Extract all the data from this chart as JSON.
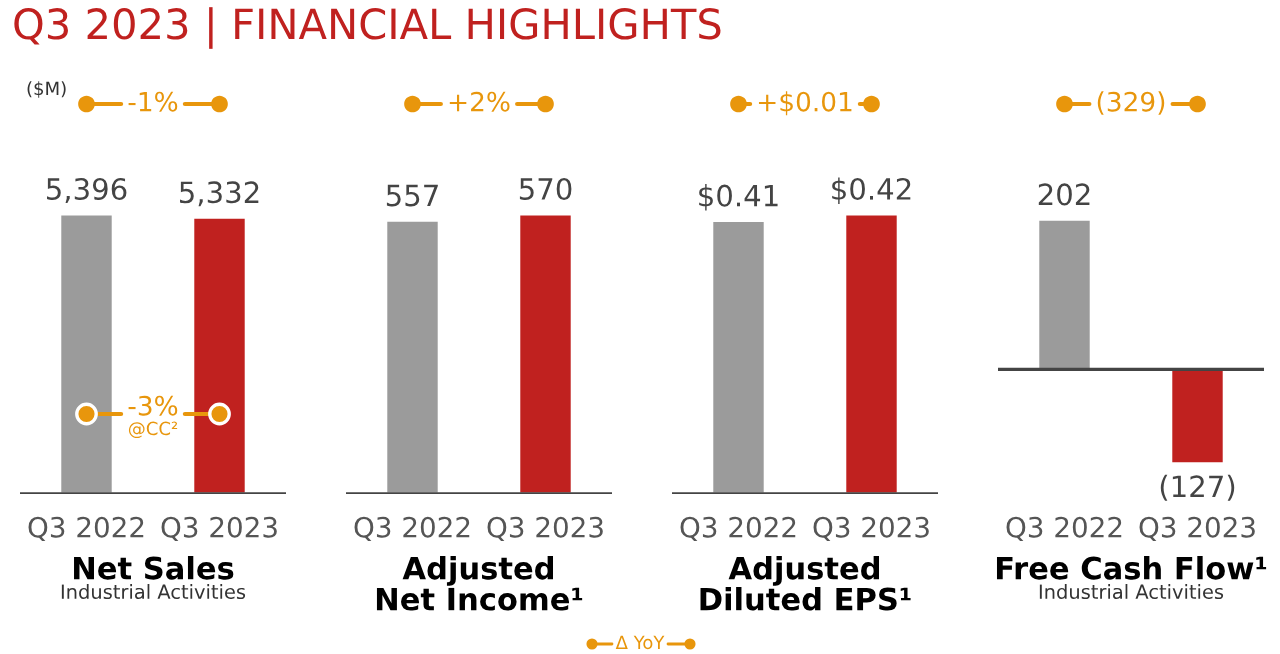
{
  "chart_data": [
    {
      "type": "bar",
      "title": "Q3 2023 | FINANCIAL HIGHLIGHTS",
      "xlabel": "Net Sales",
      "subtitle": "Industrial Activities",
      "categories": [
        "Q3 2022",
        "Q3 2023"
      ],
      "values": [
        5396,
        5332
      ],
      "colors": [
        "#9b9b9b",
        "#c0211f"
      ],
      "value_labels": [
        "5,396",
        "5,332"
      ],
      "annotations": [
        "-1%",
        "($M)",
        "-3%",
        "@CC²"
      ]
    },
    {
      "type": "bar",
      "xlabel": "Adjusted\nNet Income¹",
      "categories": [
        "Q3 2022",
        "Q3 2023"
      ],
      "values": [
        557,
        570
      ],
      "colors": [
        "#9b9b9b",
        "#c0211f"
      ],
      "value_labels": [
        "557",
        "570"
      ],
      "annotations": [
        "+2%",
        "Δ YoY"
      ]
    },
    {
      "type": "bar",
      "xlabel": "Adjusted\nDiluted EPS¹",
      "categories": [
        "Q3 2022",
        "Q3 2023"
      ],
      "values": [
        0.41,
        0.42
      ],
      "colors": [
        "#9b9b9b",
        "#c0211f"
      ],
      "value_labels": [
        "$0.41",
        "$0.42"
      ],
      "annotations": [
        "+$0.01"
      ]
    },
    {
      "type": "bar",
      "xlabel": "Free Cash Flow¹",
      "subtitle": "Industrial Activities",
      "categories": [
        "Q3 2022",
        "Q3 2023"
      ],
      "values": [
        202,
        -127
      ],
      "colors": [
        "#9b9b9b",
        "#c0211f"
      ],
      "value_labels": [
        "202",
        "(127)"
      ],
      "annotations": [
        "(329)"
      ]
    }
  ]
}
